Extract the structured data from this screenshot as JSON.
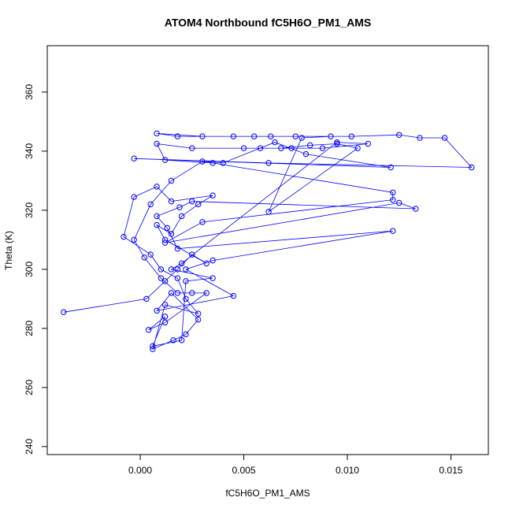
{
  "chart_data": {
    "type": "line",
    "title": "ATOM4 Northbound fC5H6O_PM1_AMS",
    "x_label": "fC5H6O_PM1_AMS",
    "y_label": "Theta (K)",
    "xlim": [
      -0.00449,
      0.01681
    ],
    "ylim": [
      237.3,
      375.7
    ],
    "xticks": [
      {
        "value": 0,
        "label": "0.000"
      },
      {
        "value": 0.005,
        "label": "0.005"
      },
      {
        "value": 0.01,
        "label": "0.010"
      },
      {
        "value": 0.015,
        "label": "0.015"
      }
    ],
    "yticks": [
      240,
      260,
      280,
      300,
      320,
      340,
      360
    ],
    "markers": "circle-open",
    "series": [
      {
        "color": "#0000ff",
        "x": [
          -0.0037,
          0.0003,
          0.0012,
          0.0018,
          0.0025,
          0.0032,
          0.0012,
          0.0008,
          0.0015,
          0.002,
          0.0028,
          0.0035,
          0.0015,
          0.0008,
          -0.0003,
          -0.0008,
          0.0005,
          0.001,
          0.0018,
          0.0022,
          0.0028,
          0.0012,
          0.0006,
          0.0016,
          0.0022,
          0.0028,
          0.0015,
          0.0008,
          0.0045,
          0.0022,
          0.0035,
          0.0122,
          0.0018,
          0.0013,
          0.0008,
          0.0019,
          0.0025,
          0.0133,
          0.0125,
          0.0012,
          0.003,
          0.0122,
          0.0122,
          0.0035,
          0.0012,
          0.0008,
          0.0025,
          0.005,
          0.0068,
          0.0082,
          0.0095,
          0.0105,
          0.0062,
          0.0078,
          0.0092,
          0.0063,
          0.0045,
          0.0018,
          0.0008,
          0.003,
          0.0055,
          0.0075,
          0.0102,
          0.0125,
          0.0135,
          0.0147,
          0.016,
          0.0062,
          -0.0003,
          0.0121,
          0.008,
          0.0065,
          0.004,
          0.003,
          0.0015,
          0.0005,
          -0.0003,
          0.0002,
          0.001,
          0.0018,
          0.0025,
          0.0032,
          0.0012,
          0.0004,
          0.0012,
          0.0006,
          0.002,
          0.0022,
          0.0035,
          0.0015,
          0.002,
          0.0095,
          0.011,
          0.0088,
          0.0073,
          0.0058
        ],
        "values": [
          285.5,
          290,
          296,
          300,
          305,
          302,
          310,
          315,
          312,
          318,
          322,
          325,
          323,
          328,
          324.5,
          311,
          305,
          300,
          297,
          290,
          285,
          288,
          273,
          276,
          278,
          283,
          292,
          286,
          291,
          300,
          303,
          313,
          307,
          314,
          318,
          321,
          323,
          320.5,
          322.5,
          309,
          316,
          323.5,
          326,
          336,
          337,
          342.5,
          341,
          341,
          341,
          342,
          342.5,
          341,
          319.5,
          344.5,
          345,
          345,
          345,
          345,
          346,
          345,
          345,
          345,
          345,
          345.5,
          344.5,
          344.5,
          334.5,
          336,
          337.5,
          334.5,
          339,
          343,
          336,
          336.5,
          330,
          322,
          310,
          304,
          297,
          292,
          292,
          292,
          282,
          279.5,
          284,
          274,
          276,
          296,
          297,
          300,
          302,
          343,
          342.5,
          341,
          341,
          341
        ]
      }
    ]
  }
}
